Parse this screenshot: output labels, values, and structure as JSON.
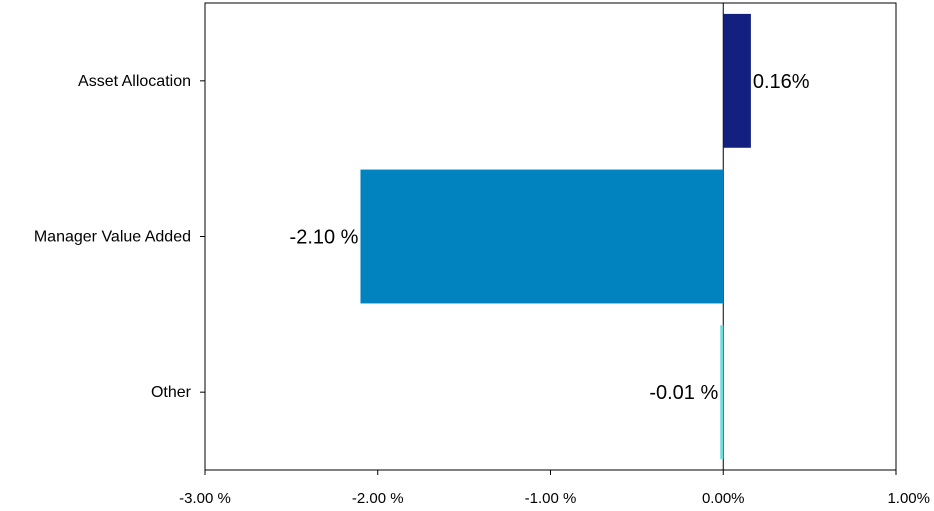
{
  "chart_data": {
    "type": "bar",
    "orientation": "horizontal",
    "categories": [
      "Asset Allocation",
      "Manager Value Added",
      "Other"
    ],
    "values": [
      0.16,
      -2.1,
      -0.01
    ],
    "data_labels": [
      "0.16%",
      "-2.10 %",
      "-0.01 %"
    ],
    "colors": [
      "#13207f",
      "#0083bf",
      "#6fdde0"
    ],
    "xlim": [
      -3.0,
      1.0
    ],
    "xticks": [
      -3.0,
      -2.0,
      -1.0,
      0.0,
      1.0
    ],
    "xtick_labels": [
      "-3.00 %",
      "-2.00 %",
      "-1.00 %",
      "0.00%",
      "1.00%"
    ],
    "title": "",
    "xlabel": "",
    "ylabel": "",
    "grid": false,
    "legend": "none"
  }
}
